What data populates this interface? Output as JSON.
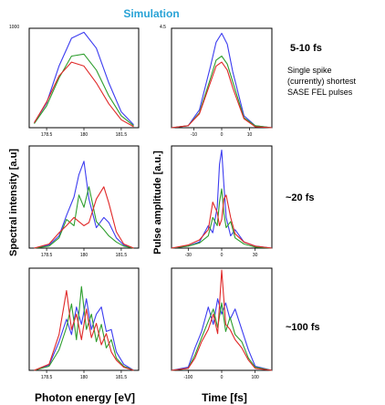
{
  "chart_data": {
    "type": "line",
    "title": "Simulation",
    "ylabel_spectral": "Spectral intensity [a.u]",
    "ylabel_pulse": "Pulse amplitude [a.u.]",
    "xlabel_energy": "Photon energy [eV]",
    "xlabel_time": "Time [fs]",
    "energy_ticks": [
      "178.5",
      "180",
      "181.5"
    ],
    "time_ticks_rows": [
      [
        "-10",
        "0",
        "10"
      ],
      [
        "-30",
        "0",
        "30"
      ],
      [
        "-100",
        "0",
        "100"
      ]
    ],
    "top_left_y": "1000",
    "top_right_y": "4.5",
    "row_labels": [
      "5-10 fs",
      "~20 fs",
      "~100 fs"
    ],
    "note_lines": [
      "Single spike",
      "(currently) shortest",
      "SASE FEL pulses"
    ],
    "colors": {
      "blue": "#3c3cf0",
      "green": "#2e9e2e",
      "red": "#e02828",
      "title": "#29a3d6"
    },
    "series_colors": [
      "blue",
      "green",
      "red"
    ],
    "rows": [
      {
        "energy": {
          "x": [
            178.0,
            178.5,
            179.0,
            179.5,
            180.0,
            180.5,
            181.0,
            181.5,
            182.0
          ],
          "blue": [
            0.05,
            0.25,
            0.62,
            0.9,
            0.96,
            0.8,
            0.45,
            0.16,
            0.03
          ],
          "green": [
            0.04,
            0.22,
            0.5,
            0.72,
            0.74,
            0.58,
            0.32,
            0.12,
            0.02
          ],
          "red": [
            0.05,
            0.26,
            0.52,
            0.66,
            0.62,
            0.45,
            0.24,
            0.08,
            0.01
          ]
        },
        "time": {
          "x": [
            -18,
            -12,
            -8,
            -4,
            -2,
            0,
            2,
            4,
            8,
            12,
            18
          ],
          "blue": [
            0.0,
            0.02,
            0.18,
            0.62,
            0.86,
            0.95,
            0.84,
            0.56,
            0.12,
            0.02,
            0.0
          ],
          "green": [
            0.0,
            0.02,
            0.15,
            0.5,
            0.68,
            0.72,
            0.64,
            0.46,
            0.1,
            0.02,
            0.0
          ],
          "red": [
            0.0,
            0.02,
            0.14,
            0.46,
            0.62,
            0.66,
            0.58,
            0.4,
            0.09,
            0.01,
            0.0
          ]
        }
      },
      {
        "energy": {
          "x": [
            178.0,
            178.6,
            179.0,
            179.3,
            179.6,
            179.8,
            180.0,
            180.2,
            180.5,
            180.8,
            181.0,
            181.3,
            181.6,
            182.0
          ],
          "blue": [
            0.0,
            0.03,
            0.12,
            0.32,
            0.5,
            0.72,
            0.85,
            0.48,
            0.2,
            0.3,
            0.25,
            0.1,
            0.03,
            0.0
          ],
          "green": [
            0.0,
            0.02,
            0.1,
            0.28,
            0.22,
            0.52,
            0.4,
            0.6,
            0.26,
            0.18,
            0.12,
            0.06,
            0.02,
            0.0
          ],
          "red": [
            0.0,
            0.04,
            0.15,
            0.22,
            0.3,
            0.26,
            0.22,
            0.25,
            0.48,
            0.6,
            0.44,
            0.16,
            0.04,
            0.0
          ]
        },
        "time": {
          "x": [
            -45,
            -30,
            -20,
            -12,
            -8,
            -4,
            -2,
            0,
            2,
            4,
            8,
            12,
            20,
            30,
            45
          ],
          "blue": [
            0.0,
            0.02,
            0.06,
            0.22,
            0.15,
            0.4,
            0.82,
            0.96,
            0.62,
            0.3,
            0.12,
            0.18,
            0.06,
            0.02,
            0.0
          ],
          "green": [
            0.0,
            0.02,
            0.05,
            0.12,
            0.3,
            0.22,
            0.45,
            0.58,
            0.34,
            0.2,
            0.26,
            0.1,
            0.04,
            0.01,
            0.0
          ],
          "red": [
            0.0,
            0.03,
            0.08,
            0.18,
            0.45,
            0.35,
            0.22,
            0.28,
            0.48,
            0.52,
            0.3,
            0.14,
            0.06,
            0.02,
            0.0
          ]
        }
      },
      {
        "energy": {
          "x": [
            178.0,
            178.6,
            179.0,
            179.3,
            179.5,
            179.7,
            179.9,
            180.1,
            180.3,
            180.5,
            180.7,
            180.9,
            181.1,
            181.3,
            181.6,
            182.0
          ],
          "blue": [
            0.0,
            0.05,
            0.28,
            0.5,
            0.35,
            0.62,
            0.45,
            0.7,
            0.4,
            0.55,
            0.62,
            0.38,
            0.4,
            0.18,
            0.06,
            0.0
          ],
          "green": [
            0.0,
            0.04,
            0.2,
            0.42,
            0.65,
            0.3,
            0.82,
            0.4,
            0.55,
            0.28,
            0.45,
            0.22,
            0.3,
            0.12,
            0.04,
            0.0
          ],
          "red": [
            0.0,
            0.06,
            0.35,
            0.78,
            0.4,
            0.55,
            0.3,
            0.6,
            0.32,
            0.46,
            0.25,
            0.36,
            0.18,
            0.1,
            0.03,
            0.0
          ]
        },
        "time": {
          "x": [
            -150,
            -100,
            -80,
            -60,
            -40,
            -25,
            -12,
            0,
            12,
            25,
            40,
            60,
            80,
            100,
            150
          ],
          "blue": [
            0.0,
            0.03,
            0.22,
            0.38,
            0.62,
            0.45,
            0.7,
            0.55,
            0.66,
            0.5,
            0.6,
            0.4,
            0.2,
            0.04,
            0.0
          ],
          "green": [
            0.0,
            0.02,
            0.15,
            0.32,
            0.48,
            0.6,
            0.42,
            0.66,
            0.38,
            0.52,
            0.35,
            0.28,
            0.12,
            0.03,
            0.0
          ],
          "red": [
            0.0,
            0.02,
            0.12,
            0.28,
            0.4,
            0.55,
            0.36,
            0.98,
            0.45,
            0.4,
            0.3,
            0.22,
            0.1,
            0.02,
            0.0
          ]
        }
      }
    ]
  }
}
